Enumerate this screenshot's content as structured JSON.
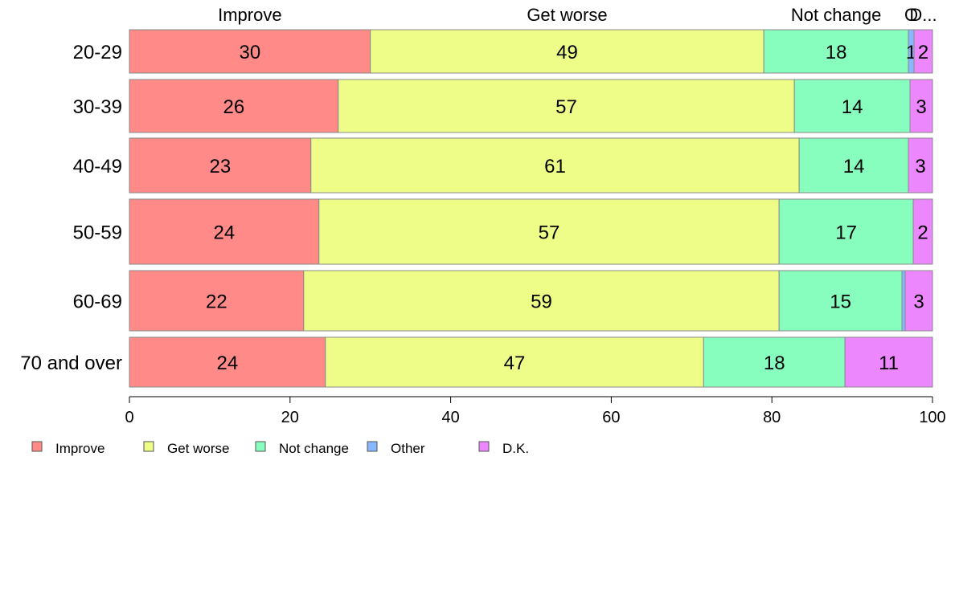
{
  "chart_data": {
    "type": "bar",
    "orientation": "horizontal",
    "stacked": true,
    "categories": [
      "20-29",
      "30-39",
      "40-49",
      "50-59",
      "60-69",
      "70 and over"
    ],
    "series": [
      {
        "name": "Improve",
        "color": "#FF8A87",
        "values": [
          30,
          26,
          22.6,
          23.6,
          21.7,
          24.4
        ],
        "labels": [
          "30",
          "26",
          "23",
          "24",
          "22",
          "24"
        ]
      },
      {
        "name": "Get worse",
        "color": "#EDFD87",
        "values": [
          49,
          56.8,
          60.8,
          57.3,
          59.2,
          47.1
        ],
        "labels": [
          "49",
          "57",
          "61",
          "57",
          "59",
          "47"
        ]
      },
      {
        "name": "Not change",
        "color": "#87FDBE",
        "values": [
          18,
          14.4,
          13.6,
          16.7,
          15.3,
          17.6
        ],
        "labels": [
          "18",
          "14",
          "14",
          "17",
          "15",
          "18"
        ]
      },
      {
        "name": "Other",
        "color": "#87B7FD",
        "values": [
          0.7,
          0,
          0,
          0,
          0.4,
          0
        ],
        "labels": [
          "1",
          "",
          "",
          "",
          "",
          ""
        ]
      },
      {
        "name": "D.K.",
        "color": "#EC87FD",
        "values": [
          2.3,
          2.8,
          3.0,
          2.4,
          3.4,
          10.9
        ],
        "labels": [
          "2",
          "3",
          "3",
          "2",
          "3",
          "11"
        ]
      }
    ],
    "top_labels": [
      "Improve",
      "Get worse",
      "Not change",
      "O",
      "D..."
    ],
    "xlim": [
      0,
      100
    ],
    "xticks": [
      "0",
      "20",
      "40",
      "60",
      "80",
      "100"
    ],
    "xlabel": "",
    "ylabel": "",
    "title": "",
    "grid": false,
    "legend": {
      "position": "bottom-left",
      "items": [
        "Improve",
        "Get worse",
        "Not change",
        "Other",
        "D.K."
      ]
    }
  }
}
